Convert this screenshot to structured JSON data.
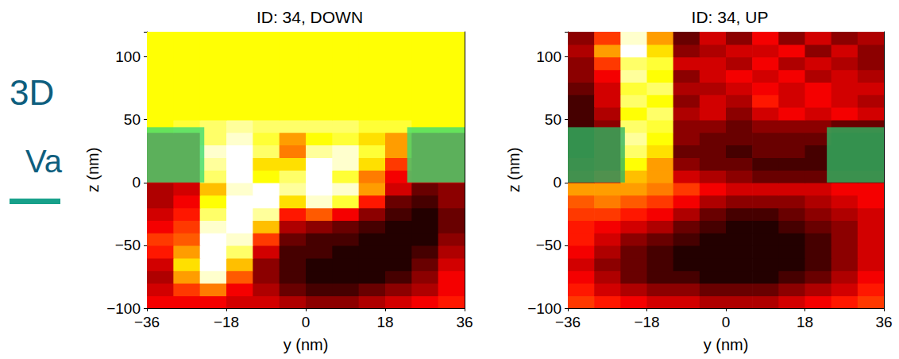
{
  "background": {
    "texts": [
      "3D",
      "Va"
    ],
    "color": "#0e5e7e"
  },
  "chart_data": [
    {
      "type": "heatmap",
      "title": "ID: 34, DOWN",
      "x_label": "y (nm)",
      "y_label": "z (nm)",
      "xlim": [
        -36,
        36
      ],
      "xticks": [
        {
          "value": -36,
          "label": "−36"
        },
        {
          "value": -18,
          "label": "−18"
        },
        0,
        18,
        36
      ],
      "ylim": [
        -100,
        120
      ],
      "yticks": [
        {
          "value": -100,
          "label": "−100"
        },
        {
          "value": -50,
          "label": "−50"
        },
        0,
        50,
        100
      ],
      "color_range": [
        0,
        1
      ],
      "x": [
        -33,
        -27,
        -21,
        -15,
        -9,
        -3,
        3,
        9,
        15,
        21,
        27,
        33
      ],
      "y": [
        -95,
        -85,
        -75,
        -65,
        -55,
        -45,
        -35,
        -25,
        -15,
        -5,
        5,
        15,
        25,
        35,
        45,
        55,
        65,
        75,
        85,
        95,
        105,
        115
      ],
      "cells": [
        [
          0.35,
          0.35,
          0.35,
          0.3,
          0.3,
          0.25,
          0.2,
          0.2,
          0.25,
          0.3,
          0.35,
          0.4
        ],
        [
          0.3,
          0.45,
          0.55,
          0.35,
          0.25,
          0.15,
          0.1,
          0.1,
          0.15,
          0.2,
          0.25,
          0.35
        ],
        [
          0.25,
          0.6,
          0.95,
          0.5,
          0.2,
          0.1,
          0.05,
          0.05,
          0.05,
          0.1,
          0.2,
          0.35
        ],
        [
          0.3,
          0.7,
          1,
          0.65,
          0.2,
          0.1,
          0.05,
          0.05,
          0.05,
          0.05,
          0.15,
          0.3
        ],
        [
          0.4,
          0.6,
          1,
          0.85,
          0.3,
          0.1,
          0.1,
          0.05,
          0.05,
          0.05,
          0.1,
          0.25
        ],
        [
          0.45,
          0.5,
          1,
          0.95,
          0.45,
          0.15,
          0.1,
          0.1,
          0.05,
          0.05,
          0.05,
          0.2
        ],
        [
          0.35,
          0.45,
          0.95,
          1,
          0.65,
          0.25,
          0.2,
          0.15,
          0.1,
          0.05,
          0.05,
          0.15
        ],
        [
          0.3,
          0.4,
          0.85,
          1,
          0.9,
          0.4,
          0.5,
          0.35,
          0.2,
          0.1,
          0.05,
          0.15
        ],
        [
          0.25,
          0.35,
          0.75,
          1,
          1,
          0.7,
          0.95,
          0.8,
          0.4,
          0.15,
          0.1,
          0.2
        ],
        [
          0.25,
          0.3,
          0.65,
          0.95,
          1,
          0.9,
          1,
          0.95,
          0.6,
          0.3,
          0.15,
          0.2
        ],
        [
          0.3,
          0.3,
          0.85,
          1,
          0.75,
          0.85,
          1,
          0.8,
          0.55,
          0.35,
          0.3,
          0.3
        ],
        [
          0.3,
          0.3,
          0.9,
          1,
          0.7,
          0.7,
          1,
          0.95,
          0.7,
          0.45,
          0.3,
          0.3
        ],
        [
          0.3,
          0.3,
          0.95,
          1,
          0.85,
          0.55,
          0.9,
          0.95,
          0.8,
          0.6,
          0.3,
          0.3
        ],
        [
          0.3,
          0.3,
          0.85,
          0.95,
          0.8,
          0.6,
          0.75,
          0.8,
          0.7,
          0.6,
          0.3,
          0.3
        ],
        [
          0.75,
          0.8,
          0.85,
          0.9,
          0.85,
          0.85,
          0.85,
          0.85,
          0.8,
          0.8,
          0.75,
          0.75
        ],
        [
          0.75,
          0.75,
          0.75,
          0.75,
          0.75,
          0.75,
          0.75,
          0.75,
          0.75,
          0.75,
          0.75,
          0.75
        ],
        [
          0.75,
          0.75,
          0.75,
          0.75,
          0.75,
          0.75,
          0.75,
          0.75,
          0.75,
          0.75,
          0.75,
          0.75
        ],
        [
          0.75,
          0.75,
          0.75,
          0.75,
          0.75,
          0.75,
          0.75,
          0.75,
          0.75,
          0.75,
          0.75,
          0.75
        ],
        [
          0.75,
          0.75,
          0.75,
          0.75,
          0.75,
          0.75,
          0.75,
          0.75,
          0.75,
          0.75,
          0.75,
          0.75
        ],
        [
          0.75,
          0.75,
          0.75,
          0.75,
          0.75,
          0.75,
          0.75,
          0.75,
          0.75,
          0.75,
          0.75,
          0.75
        ],
        [
          0.75,
          0.75,
          0.75,
          0.75,
          0.75,
          0.75,
          0.75,
          0.75,
          0.75,
          0.75,
          0.75,
          0.75
        ],
        [
          0.75,
          0.75,
          0.75,
          0.75,
          0.75,
          0.75,
          0.75,
          0.75,
          0.75,
          0.75,
          0.75,
          0.75
        ]
      ],
      "boxes": [
        {
          "y": [
            -36,
            -23
          ],
          "z": [
            0,
            44
          ],
          "color": "#3fdc72"
        },
        {
          "y": [
            23,
            36
          ],
          "z": [
            0,
            44
          ],
          "color": "#3fdc72"
        }
      ]
    },
    {
      "type": "heatmap",
      "title": "ID: 34, UP",
      "x_label": "y (nm)",
      "y_label": "z (nm)",
      "xlim": [
        -36,
        36
      ],
      "xticks": [
        {
          "value": -36,
          "label": "−36"
        },
        {
          "value": -18,
          "label": "−18"
        },
        0,
        18,
        36
      ],
      "ylim": [
        -100,
        120
      ],
      "yticks": [
        {
          "value": -100,
          "label": "−100"
        },
        {
          "value": -50,
          "label": "−50"
        },
        0,
        50,
        100
      ],
      "color_range": [
        0,
        1
      ],
      "x": [
        -33,
        -27,
        -21,
        -15,
        -9,
        -3,
        3,
        9,
        15,
        21,
        27,
        33
      ],
      "y": [
        -95,
        -85,
        -75,
        -65,
        -55,
        -45,
        -35,
        -25,
        -15,
        -5,
        5,
        15,
        25,
        35,
        45,
        55,
        65,
        75,
        85,
        95,
        105,
        115
      ],
      "cells": [
        [
          0.45,
          0.4,
          0.35,
          0.3,
          0.3,
          0.25,
          0.25,
          0.25,
          0.3,
          0.35,
          0.4,
          0.45
        ],
        [
          0.4,
          0.3,
          0.25,
          0.2,
          0.2,
          0.15,
          0.15,
          0.15,
          0.2,
          0.25,
          0.3,
          0.4
        ],
        [
          0.35,
          0.25,
          0.15,
          0.1,
          0.1,
          0.05,
          0.05,
          0.05,
          0.1,
          0.15,
          0.25,
          0.35
        ],
        [
          0.3,
          0.2,
          0.15,
          0.1,
          0.05,
          0.05,
          0.05,
          0.05,
          0.05,
          0.1,
          0.2,
          0.3
        ],
        [
          0.35,
          0.25,
          0.15,
          0.1,
          0.05,
          0.05,
          0.05,
          0.05,
          0.05,
          0.1,
          0.2,
          0.3
        ],
        [
          0.4,
          0.3,
          0.2,
          0.15,
          0.1,
          0.05,
          0.05,
          0.05,
          0.05,
          0.1,
          0.2,
          0.3
        ],
        [
          0.4,
          0.35,
          0.3,
          0.25,
          0.15,
          0.1,
          0.05,
          0.05,
          0.1,
          0.15,
          0.2,
          0.3
        ],
        [
          0.45,
          0.45,
          0.4,
          0.35,
          0.25,
          0.15,
          0.1,
          0.1,
          0.15,
          0.2,
          0.25,
          0.3
        ],
        [
          0.5,
          0.55,
          0.5,
          0.45,
          0.35,
          0.25,
          0.2,
          0.2,
          0.2,
          0.25,
          0.3,
          0.35
        ],
        [
          0.6,
          0.6,
          0.6,
          0.55,
          0.45,
          0.35,
          0.3,
          0.3,
          0.3,
          0.3,
          0.35,
          0.35
        ],
        [
          0.2,
          0.3,
          0.65,
          0.6,
          0.3,
          0.25,
          0.2,
          0.15,
          0.15,
          0.15,
          0.15,
          0.15
        ],
        [
          0.15,
          0.2,
          0.75,
          0.6,
          0.2,
          0.15,
          0.15,
          0.1,
          0.1,
          0.1,
          0.1,
          0.1
        ],
        [
          0.1,
          0.2,
          0.85,
          0.7,
          0.15,
          0.15,
          0.1,
          0.15,
          0.15,
          0.1,
          0.1,
          0.1
        ],
        [
          0.1,
          0.2,
          0.9,
          0.75,
          0.2,
          0.15,
          0.15,
          0.15,
          0.15,
          0.15,
          0.1,
          0.1
        ],
        [
          0.1,
          0.2,
          0.85,
          0.8,
          0.2,
          0.2,
          0.15,
          0.2,
          0.2,
          0.2,
          0.15,
          0.15
        ],
        [
          0.1,
          0.25,
          0.75,
          0.85,
          0.25,
          0.3,
          0.2,
          0.3,
          0.35,
          0.3,
          0.35,
          0.3
        ],
        [
          0.1,
          0.3,
          0.85,
          0.75,
          0.2,
          0.3,
          0.25,
          0.4,
          0.3,
          0.35,
          0.3,
          0.25
        ],
        [
          0.15,
          0.3,
          0.8,
          0.85,
          0.25,
          0.25,
          0.3,
          0.35,
          0.3,
          0.35,
          0.3,
          0.3
        ],
        [
          0.2,
          0.35,
          0.9,
          0.75,
          0.2,
          0.3,
          0.35,
          0.3,
          0.35,
          0.25,
          0.3,
          0.25
        ],
        [
          0.2,
          0.45,
          0.85,
          0.8,
          0.3,
          0.3,
          0.25,
          0.35,
          0.25,
          0.3,
          0.25,
          0.2
        ],
        [
          0.25,
          0.6,
          1,
          0.7,
          0.2,
          0.25,
          0.3,
          0.3,
          0.35,
          0.2,
          0.3,
          0.2
        ],
        [
          0.2,
          0.45,
          0.95,
          0.6,
          0.15,
          0.3,
          0.2,
          0.35,
          0.2,
          0.3,
          0.2,
          0.25
        ]
      ],
      "boxes": [
        {
          "y": [
            -36,
            -23
          ],
          "z": [
            0,
            44
          ],
          "color": "#2fb562"
        },
        {
          "y": [
            23,
            36
          ],
          "z": [
            0,
            44
          ],
          "color": "#2fb562"
        }
      ]
    }
  ]
}
